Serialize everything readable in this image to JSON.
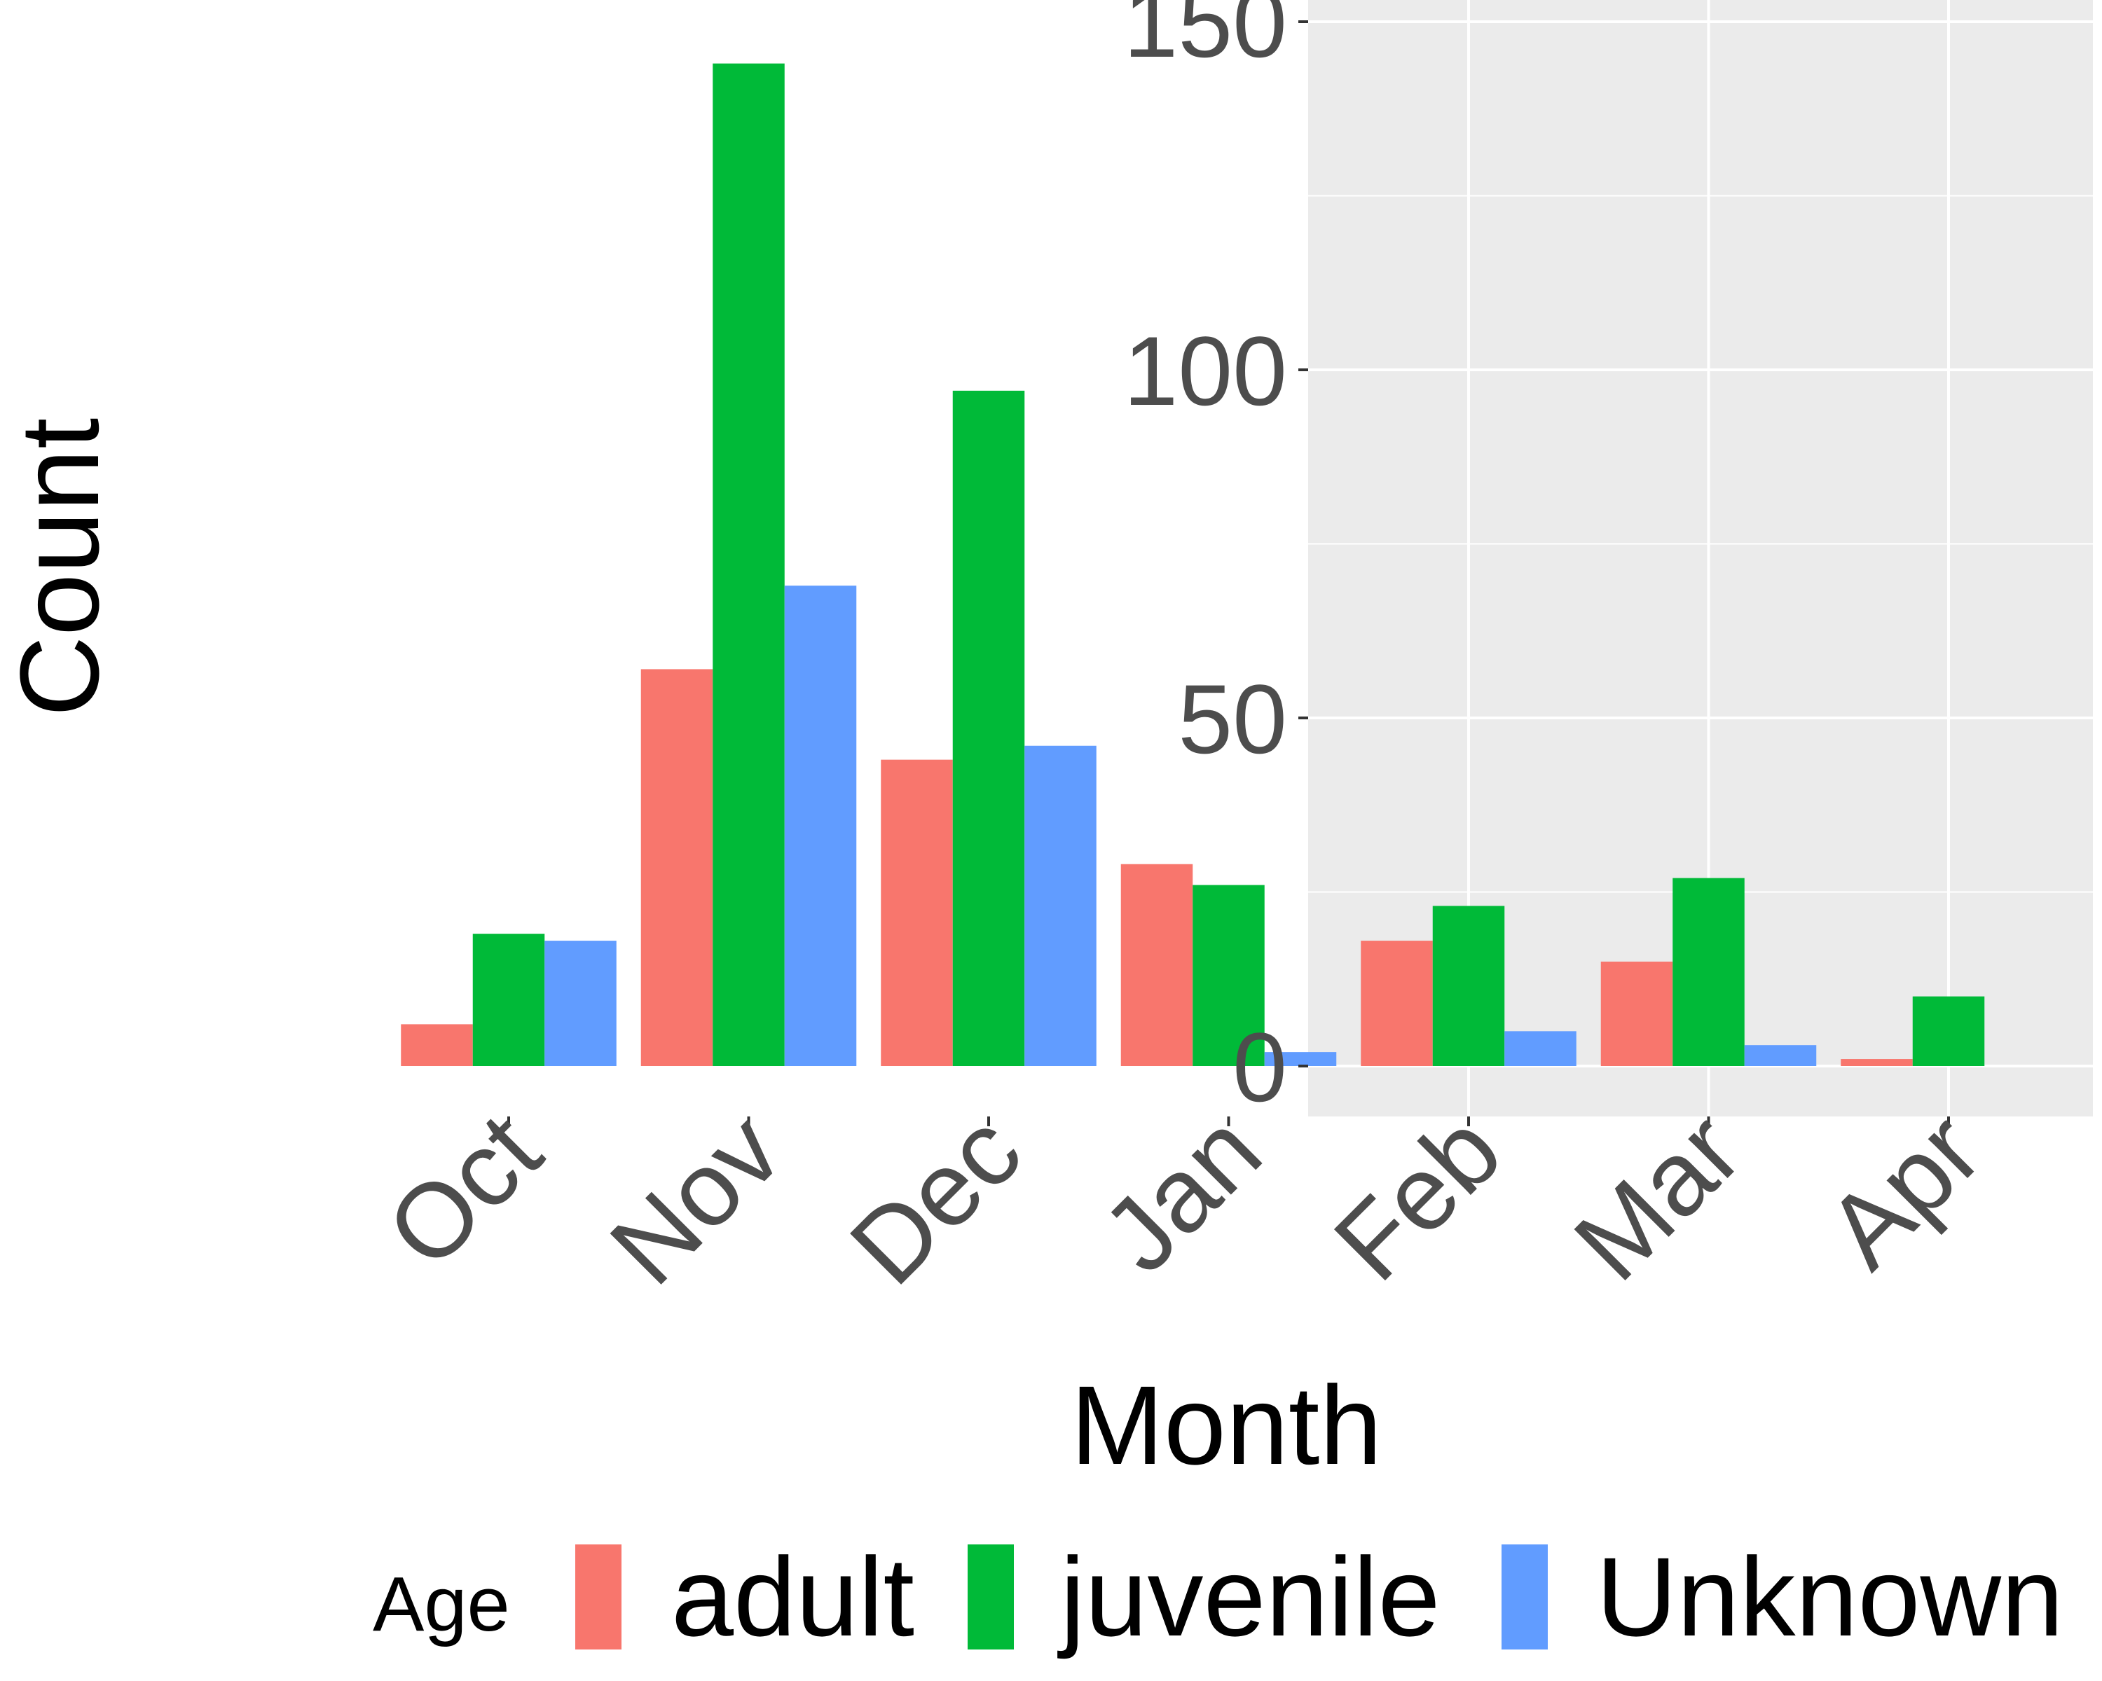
{
  "chart_data": {
    "type": "bar",
    "title": "",
    "xlabel": "Month",
    "ylabel": "Count",
    "categories": [
      "Oct",
      "Nov",
      "Dec",
      "Jan",
      "Feb",
      "Mar",
      "Apr"
    ],
    "series": [
      {
        "name": "adult",
        "color": "#F8766D",
        "values": [
          6,
          57,
          44,
          29,
          18,
          15,
          1
        ]
      },
      {
        "name": "juvenile",
        "color": "#00BA38",
        "values": [
          19,
          144,
          97,
          26,
          23,
          27,
          10
        ]
      },
      {
        "name": "Unknown",
        "color": "#619CFF",
        "values": [
          18,
          69,
          46,
          2,
          5,
          3,
          0
        ]
      }
    ],
    "ylim": [
      -7.3,
      150
    ],
    "yticks": [
      0,
      50,
      100,
      150
    ],
    "y_minor_ticks": [
      25,
      75,
      125
    ],
    "grid": true,
    "panel_background": "#EBEBEB",
    "gridline_color": "#FFFFFF",
    "legend": {
      "title": "Age",
      "position": "bottom"
    }
  }
}
